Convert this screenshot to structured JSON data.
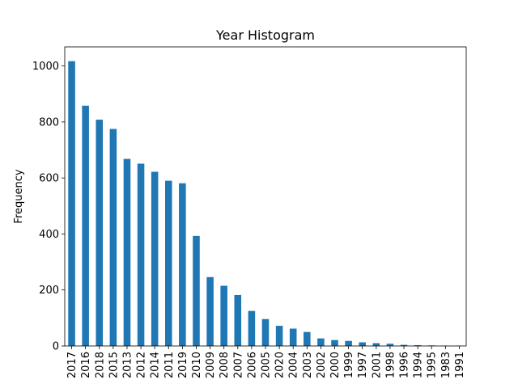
{
  "chart_data": {
    "type": "bar",
    "title": "Year Histogram",
    "xlabel": "",
    "ylabel": "Frequency",
    "ylim": [
      0,
      1068
    ],
    "yticks": [
      0,
      200,
      400,
      600,
      800,
      1000
    ],
    "grid": false,
    "bar_color": "#1f77b4",
    "categories": [
      "2017",
      "2016",
      "2018",
      "2015",
      "2013",
      "2012",
      "2014",
      "2011",
      "2019",
      "2010",
      "2009",
      "2008",
      "2007",
      "2006",
      "2005",
      "2020",
      "2004",
      "2003",
      "2002",
      "2000",
      "1999",
      "1997",
      "2001",
      "1998",
      "1996",
      "1994",
      "1995",
      "1983",
      "1991"
    ],
    "values": [
      1017,
      858,
      808,
      775,
      668,
      651,
      622,
      590,
      581,
      393,
      246,
      215,
      182,
      125,
      96,
      72,
      62,
      50,
      27,
      21,
      18,
      13,
      10,
      8,
      4,
      3,
      2,
      1,
      1
    ]
  }
}
